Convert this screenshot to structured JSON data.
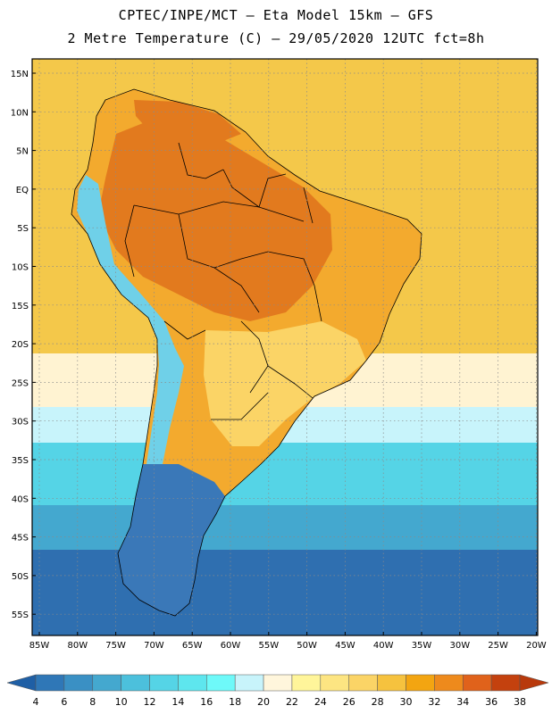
{
  "header": {
    "line1": "CPTEC/INPE/MCT –  Eta Model 15km – GFS",
    "line2": "2 Metre Temperature (C) – 29/05/2020 12UTC fct=8h"
  },
  "axes": {
    "lat_labels": [
      "15N",
      "10N",
      "5N",
      "EQ",
      "5S",
      "10S",
      "15S",
      "20S",
      "25S",
      "30S",
      "35S",
      "40S",
      "45S",
      "50S",
      "55S"
    ],
    "lon_labels": [
      "85W",
      "80W",
      "75W",
      "70W",
      "65W",
      "60W",
      "55W",
      "50W",
      "45W",
      "40W",
      "35W",
      "30W",
      "25W",
      "20W"
    ]
  },
  "colorbar": {
    "labels": [
      "4",
      "6",
      "8",
      "10",
      "12",
      "14",
      "16",
      "18",
      "20",
      "22",
      "24",
      "26",
      "28",
      "30",
      "32",
      "34",
      "36",
      "38"
    ],
    "colors": [
      "#1f5fa5",
      "#2f77b7",
      "#3a90c4",
      "#44a8cf",
      "#4cc0dc",
      "#55d4e6",
      "#5ee6ee",
      "#6ef9f9",
      "#c8f4fb",
      "#fff6dc",
      "#fff59a",
      "#fde582",
      "#fbd466",
      "#f6c23e",
      "#f3a511",
      "#ee8a1c",
      "#e0621b",
      "#c4410e",
      "#b8390c"
    ]
  },
  "colors": {
    "ocean_north": "#f4c84a",
    "ocean_subtropical": "#fff3d2",
    "ocean_mid": "#55d4e6",
    "ocean_south": "#2f6fb0",
    "land_hot": "#e27a1e",
    "land_warm": "#f3aa2e",
    "land_mild": "#fbd466",
    "andes_cold": "#6fd0e8",
    "patagonia": "#3a78b8",
    "border": "#000000"
  }
}
